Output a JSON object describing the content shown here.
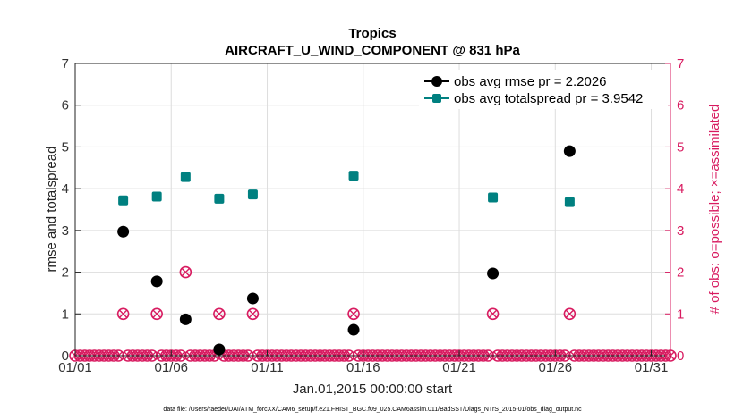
{
  "chart_data": {
    "type": "scatter",
    "title": "Tropics",
    "subtitle": "AIRCRAFT_U_WIND_COMPONENT @ 831 hPa",
    "xlabel": "Jan.01,2015 00:00:00 start",
    "ylabel": "rmse and totalspread",
    "ylabel_right": "# of obs: o=possible; ×=assimilated",
    "x_ticks": [
      {
        "day": 1,
        "label": "01/01"
      },
      {
        "day": 6,
        "label": "01/06"
      },
      {
        "day": 11,
        "label": "01/11"
      },
      {
        "day": 16,
        "label": "01/16"
      },
      {
        "day": 21,
        "label": "01/21"
      },
      {
        "day": 26,
        "label": "01/26"
      },
      {
        "day": 31,
        "label": "01/31"
      }
    ],
    "xlim": [
      1,
      32
    ],
    "ylim": [
      0,
      7
    ],
    "y_ticks": [
      "0",
      "1",
      "2",
      "3",
      "4",
      "5",
      "6",
      "7"
    ],
    "y_ticks_right": [
      "0",
      "1",
      "2",
      "3",
      "4",
      "5",
      "6",
      "7"
    ],
    "series": [
      {
        "name": "obs avg rmse pr = 2.2026",
        "color": "#000000",
        "marker": "circle",
        "points": [
          [
            3.5,
            2.97
          ],
          [
            5.25,
            1.78
          ],
          [
            6.75,
            0.87
          ],
          [
            8.5,
            0.15
          ],
          [
            10.25,
            1.37
          ],
          [
            15.5,
            0.62
          ],
          [
            22.75,
            1.97
          ],
          [
            26.75,
            4.9
          ]
        ]
      },
      {
        "name": "obs avg totalspread pr = 3.9542",
        "color": "#008080",
        "marker": "square",
        "points": [
          [
            3.5,
            3.72
          ],
          [
            5.25,
            3.81
          ],
          [
            6.75,
            4.28
          ],
          [
            8.5,
            3.76
          ],
          [
            10.25,
            3.86
          ],
          [
            15.5,
            4.31
          ],
          [
            22.75,
            3.79
          ],
          [
            26.75,
            3.68
          ]
        ]
      }
    ],
    "obs_counts": {
      "color": "#d81b60",
      "nonzero": [
        [
          3.5,
          1
        ],
        [
          5.25,
          1
        ],
        [
          6.75,
          2
        ],
        [
          8.5,
          1
        ],
        [
          10.25,
          1
        ],
        [
          15.5,
          1
        ],
        [
          22.75,
          1
        ],
        [
          26.75,
          1
        ]
      ],
      "zero_step_days": 0.25
    },
    "footer": "data file: /Users/raeder/DAI/ATM_forcXX/CAM6_setup/f.e21.FHIST_BGC.f09_025.CAM6assim.011/BadSST/Diags_NTrS_2015-01/obs_diag_output.nc"
  }
}
